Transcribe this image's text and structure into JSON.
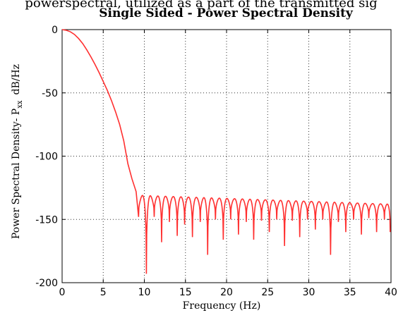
{
  "caption_fragment": "powerspectral, utilized as a part of the transmitted sig",
  "chart_data": {
    "type": "line",
    "title": "Single Sided - Power Spectral Density",
    "xlabel": "Frequency (Hz)",
    "ylabel": "Power Spectral Density- P",
    "ylabel_sub": "xx",
    "ylabel_unit": "dB/Hz",
    "xlim": [
      0,
      40
    ],
    "ylim": [
      -200,
      0
    ],
    "xticks": [
      0,
      5,
      10,
      15,
      20,
      25,
      30,
      35,
      40
    ],
    "yticks": [
      0,
      -50,
      -100,
      -150,
      -200
    ],
    "grid": true,
    "line_color": "#ff3030",
    "main_lobe": {
      "x": [
        0,
        0.5,
        1,
        1.5,
        2,
        2.5,
        3,
        3.5,
        4,
        4.5,
        5,
        5.5,
        6,
        6.5,
        7,
        7.5,
        8,
        8.5,
        9,
        9.3
      ],
      "y": [
        0,
        -0.5,
        -1.7,
        -3.8,
        -7,
        -11,
        -16,
        -21.5,
        -27.5,
        -34,
        -41,
        -48,
        -56,
        -65,
        -75,
        -88,
        -106,
        -118,
        -128,
        -148
      ]
    },
    "sidelobe_envelope": {
      "x": [
        9.5,
        40
      ],
      "y": [
        -131,
        -138
      ]
    },
    "nulls": {
      "x": [
        9.3,
        10.25,
        11.2,
        12.1,
        13.05,
        14,
        14.9,
        15.85,
        16.8,
        17.7,
        18.65,
        19.6,
        20.5,
        21.45,
        22.4,
        23.3,
        24.25,
        25.2,
        26.1,
        27.05,
        28,
        28.9,
        29.85,
        30.8,
        31.7,
        32.65,
        33.6,
        34.5,
        35.45,
        36.4,
        37.3,
        38.25,
        39.2,
        39.9
      ],
      "y": [
        -148,
        -193,
        -148,
        -168,
        -152,
        -163,
        -154,
        -164,
        -152,
        -178,
        -150,
        -166,
        -150,
        -162,
        -152,
        -166,
        -151,
        -160,
        -150,
        -171,
        -151,
        -164,
        -150,
        -158,
        -150,
        -178,
        -152,
        -160,
        -150,
        -162,
        -149,
        -160,
        -150,
        -160
      ]
    }
  }
}
